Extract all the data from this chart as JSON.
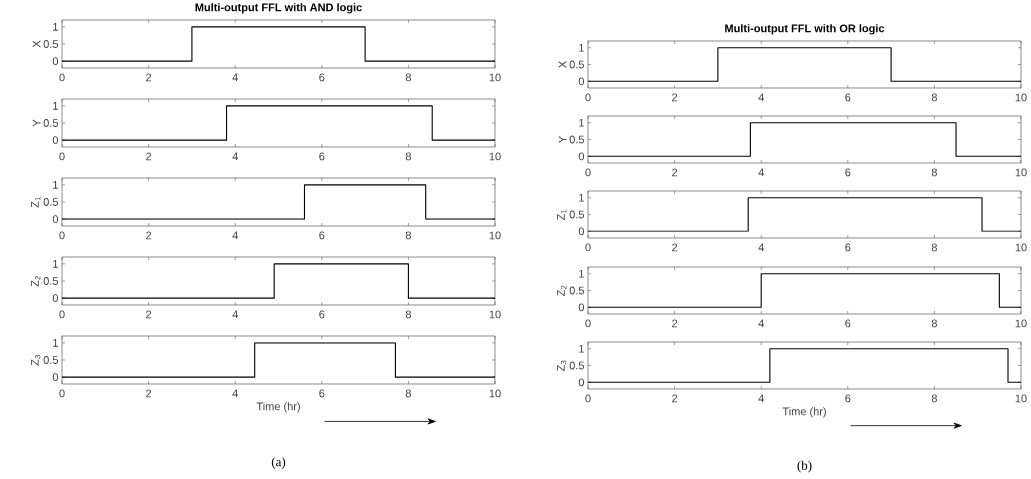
{
  "chart_data": [
    {
      "type": "step",
      "title": "Multi-output FFL with AND logic",
      "ylabel": "X",
      "x": [
        0,
        3,
        7,
        10
      ],
      "values": [
        0,
        1,
        0,
        0
      ],
      "color": "#000000",
      "xlim": [
        0,
        10
      ],
      "ylim": [
        -0.2,
        1.2
      ],
      "xticks": [
        0,
        2,
        4,
        6,
        8,
        10
      ],
      "yticks": [
        0,
        0.5,
        1
      ]
    },
    {
      "type": "step",
      "ylabel": "Y",
      "x": [
        0,
        3.8,
        8.55,
        10
      ],
      "values": [
        0,
        1,
        0,
        0
      ],
      "color": "#000000",
      "xlim": [
        0,
        10
      ],
      "ylim": [
        -0.2,
        1.2
      ],
      "xticks": [
        0,
        2,
        4,
        6,
        8,
        10
      ],
      "yticks": [
        0,
        0.5,
        1
      ]
    },
    {
      "type": "step",
      "ylabel": "Z$_{1}$",
      "x": [
        0,
        5.6,
        8.4,
        10
      ],
      "values": [
        0,
        1,
        0,
        0
      ],
      "color": "#000000",
      "xlim": [
        0,
        10
      ],
      "ylim": [
        -0.2,
        1.2
      ],
      "xticks": [
        0,
        2,
        4,
        6,
        8,
        10
      ],
      "yticks": [
        0,
        0.5,
        1
      ]
    },
    {
      "type": "step",
      "ylabel": "Z$_{2}$",
      "x": [
        0,
        4.9,
        8,
        10
      ],
      "values": [
        0,
        1,
        0,
        0
      ],
      "color": "#000000",
      "xlim": [
        0,
        10
      ],
      "ylim": [
        -0.2,
        1.2
      ],
      "xticks": [
        0,
        2,
        4,
        6,
        8,
        10
      ],
      "yticks": [
        0,
        0.5,
        1
      ]
    },
    {
      "type": "step",
      "ylabel": "Z$_{3}$",
      "xlabel": "Time (hr)",
      "annotations": [
        "(a)"
      ],
      "x": [
        0,
        4.45,
        7.7,
        10
      ],
      "values": [
        0,
        1,
        0,
        0
      ],
      "color": "#000000",
      "xlim": [
        0,
        10
      ],
      "ylim": [
        -0.2,
        1.2
      ],
      "xticks": [
        0,
        2,
        4,
        6,
        8,
        10
      ],
      "yticks": [
        0,
        0.5,
        1
      ]
    },
    {
      "type": "step",
      "title": "Multi-output FFL with OR logic",
      "ylabel": "X",
      "x": [
        0,
        3,
        7,
        10
      ],
      "values": [
        0,
        1,
        0,
        0
      ],
      "color": "#000000",
      "xlim": [
        0,
        10
      ],
      "ylim": [
        -0.2,
        1.2
      ],
      "xticks": [
        0,
        2,
        4,
        6,
        8,
        10
      ],
      "yticks": [
        0,
        0.5,
        1
      ]
    },
    {
      "type": "step",
      "ylabel": "Y",
      "x": [
        0,
        3.75,
        8.5,
        10
      ],
      "values": [
        0,
        1,
        0,
        0
      ],
      "color": "#000000",
      "xlim": [
        0,
        10
      ],
      "ylim": [
        -0.2,
        1.2
      ],
      "xticks": [
        0,
        2,
        4,
        6,
        8,
        10
      ],
      "yticks": [
        0,
        0.5,
        1
      ]
    },
    {
      "type": "step",
      "ylabel": "Z$_{1}$",
      "x": [
        0,
        3.7,
        9.1,
        10
      ],
      "values": [
        0,
        1,
        0,
        0
      ],
      "color": "#000000",
      "xlim": [
        0,
        10
      ],
      "ylim": [
        -0.2,
        1.2
      ],
      "xticks": [
        0,
        2,
        4,
        6,
        8,
        10
      ],
      "yticks": [
        0,
        0.5,
        1
      ]
    },
    {
      "type": "step",
      "ylabel": "Z$_{2}$",
      "x": [
        0,
        4,
        9.5,
        10
      ],
      "values": [
        0,
        1,
        0,
        0
      ],
      "color": "#000000",
      "xlim": [
        0,
        10
      ],
      "ylim": [
        -0.2,
        1.2
      ],
      "xticks": [
        0,
        2,
        4,
        6,
        8,
        10
      ],
      "yticks": [
        0,
        0.5,
        1
      ]
    },
    {
      "type": "step",
      "ylabel": "Z$_{3}$",
      "xlabel": "Time (hr)",
      "annotations": [
        "(b)"
      ],
      "x": [
        0,
        4.2,
        9.7,
        10
      ],
      "values": [
        0,
        1,
        0,
        0
      ],
      "color": "#000000",
      "xlim": [
        0,
        10
      ],
      "ylim": [
        -0.2,
        1.2
      ],
      "xticks": [
        0,
        2,
        4,
        6,
        8,
        10
      ],
      "yticks": [
        0,
        0.5,
        1
      ]
    }
  ]
}
